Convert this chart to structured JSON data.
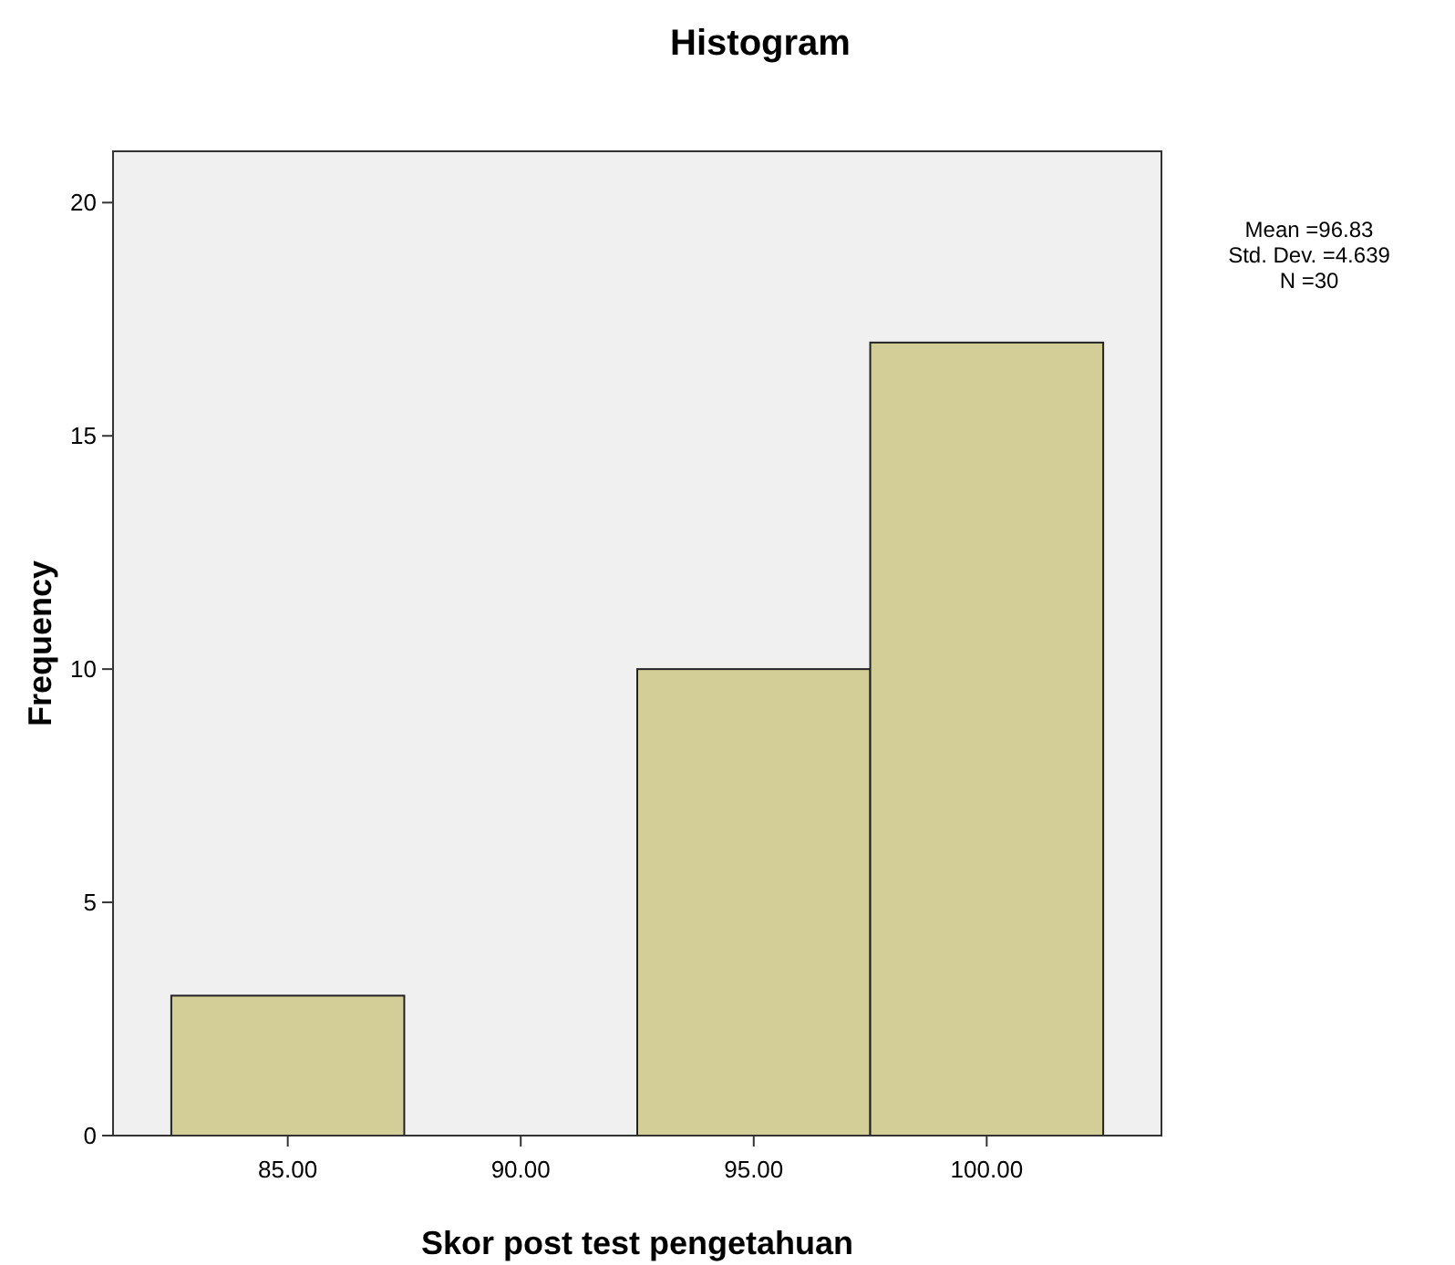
{
  "chart_data": {
    "type": "histogram",
    "title": "Histogram",
    "xlabel": "Skor post test pengetahuan",
    "ylabel": "Frequency",
    "bins": [
      82.5,
      87.5,
      92.5,
      97.5,
      102.5
    ],
    "values": [
      3,
      0,
      10,
      17
    ],
    "color": "#d3ce97",
    "xlim": [
      81.25,
      103.75
    ],
    "xticks": [
      {
        "value": 85,
        "label": "85.00"
      },
      {
        "value": 90,
        "label": "90.00"
      },
      {
        "value": 95,
        "label": "95.00"
      },
      {
        "value": 100,
        "label": "100.00"
      }
    ],
    "ylim": [
      0,
      21.1
    ],
    "yticks": [
      0,
      5,
      10,
      15,
      20
    ],
    "grid": false,
    "annotations": [
      "Mean =96.83",
      "Std. Dev. =4.639",
      "N =30"
    ]
  }
}
